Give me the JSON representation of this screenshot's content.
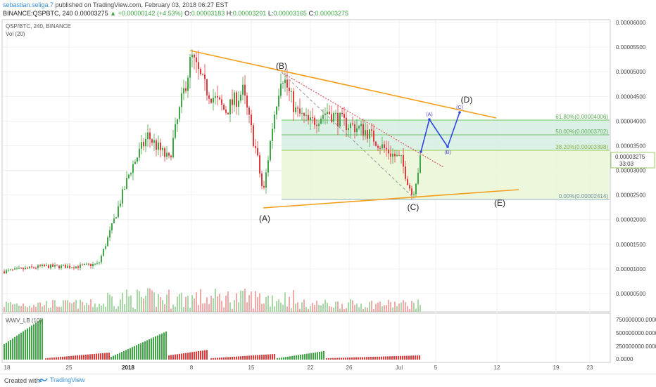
{
  "header": {
    "author": "sebastian.seliga.7",
    "published_text": " published on TradingView.com, February 03, 2018 06:27 EST",
    "symbol": "BINANCE:QSPBTC, 240",
    "last": "0.00003275",
    "change_arrow": "▲",
    "change": "+0.00000142 (+4.53%)",
    "ohlc_o_label": "O:",
    "ohlc_o": "0.00003183",
    "ohlc_h_label": "H:",
    "ohlc_h": "0.00003291",
    "ohlc_l_label": "L:",
    "ohlc_l": "0.00003165",
    "ohlc_c_label": "C:",
    "ohlc_c": "0.00003275"
  },
  "legend": {
    "pair": "QSP/BTC, 240, BINANCE",
    "vol": "Vol (20)",
    "lower": "WWV_LB (10)"
  },
  "colors": {
    "up": "#3ea645",
    "down": "#e03a3a",
    "wedge": "#f5a623",
    "fib_zone": "#d8f0c8",
    "fib_line": "#7cc576",
    "wave_path": "#2c46e0",
    "dotted_trend": "#e03a3a"
  },
  "price_axis": {
    "ticks": [
      "0.00006000",
      "0.00005500",
      "0.00005000",
      "0.00004500",
      "0.00004000",
      "0.00003500",
      "0.00003000",
      "0.00002500",
      "0.00002000",
      "0.00001500",
      "0.00001000",
      "0.00000500"
    ],
    "last_price_label": "0.00003275",
    "countdown": "33:03"
  },
  "lower_axis": {
    "ticks": [
      "750000000.0000",
      "500000000.0000",
      "250000000.0000",
      "0.0000"
    ]
  },
  "time_axis": {
    "labels": [
      "18",
      "25",
      "2018",
      "8",
      "15",
      "22",
      "26",
      "Jul",
      "5",
      "12",
      "19",
      "23"
    ]
  },
  "fib_levels": [
    {
      "label": "61.80%(0.00004006)",
      "price": 4.006e-05
    },
    {
      "label": "50.00%(0.00003702)",
      "price": 3.702e-05
    },
    {
      "label": "38.20%(0.00003398)",
      "price": 3.398e-05
    },
    {
      "label": "0.00%(0.00002414)",
      "price": 2.414e-05
    }
  ],
  "waves": {
    "B": "(B)",
    "A": "(A)",
    "C": "(C)",
    "D": "(D)",
    "E": "(E)",
    "a_small": "(A)",
    "b_small": "(B)",
    "c_small": "(C)"
  },
  "footer": {
    "created": "Created with",
    "brand": "TradingView"
  }
}
